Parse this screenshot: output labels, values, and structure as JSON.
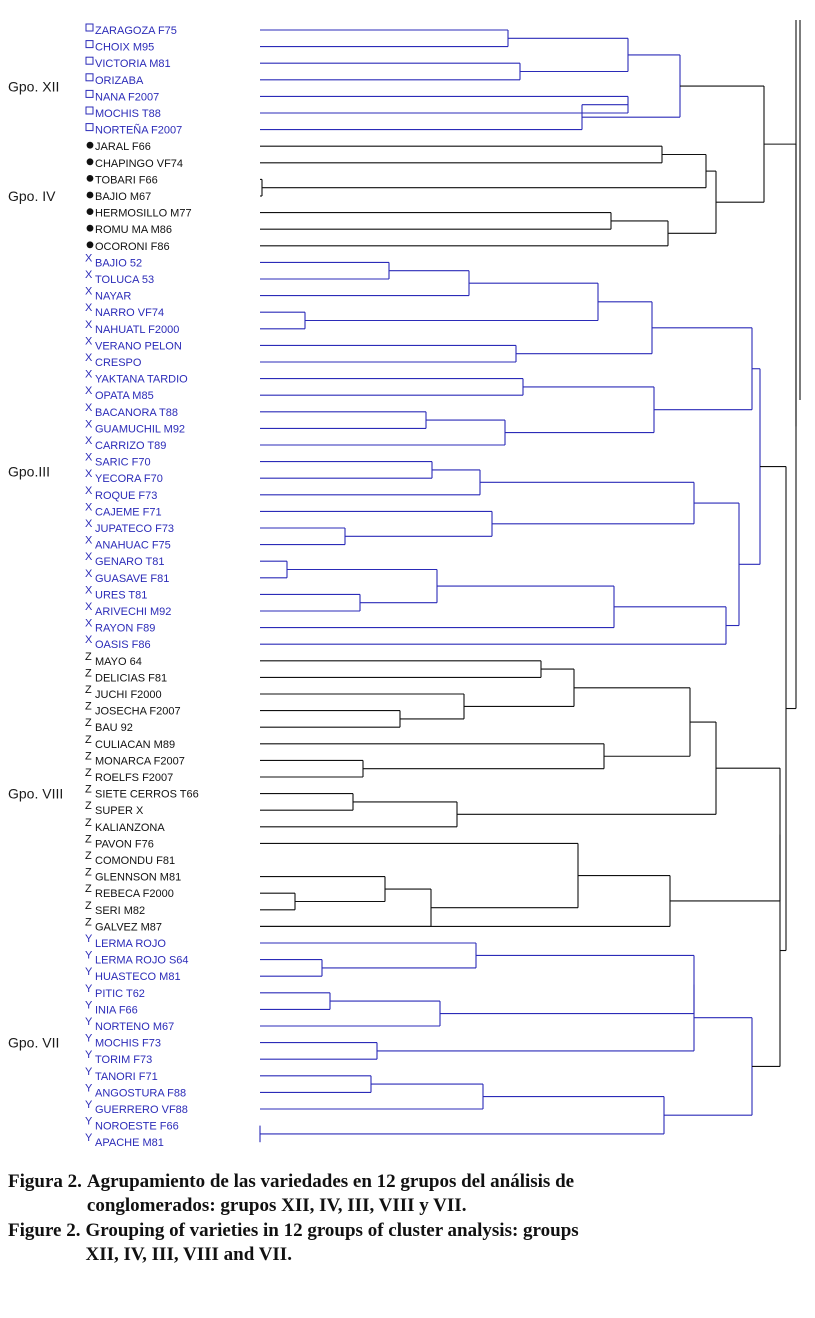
{
  "colors": {
    "blue": "#2b2bb8",
    "black": "#111111"
  },
  "groups": [
    {
      "label": "Gpo. XII",
      "marker": "□",
      "color": "blue",
      "leaves": [
        "ZARAGOZA F75",
        "CHOIX M95",
        "VICTORIA M81",
        "ORIZABA",
        "NANA F2007",
        "MOCHIS T88",
        "NORTEÑA F2007"
      ]
    },
    {
      "label": "Gpo. IV",
      "marker": "●",
      "color": "black",
      "leaves": [
        "JARAL F66",
        "CHAPINGO VF74",
        "TOBARI F66",
        "BAJIO M67",
        "HERMOSILLO M77",
        "ROMU MA M86",
        "OCORONI F86"
      ]
    },
    {
      "label": "Gpo.III",
      "marker": "X",
      "color": "blue",
      "leaves": [
        "BAJIO 52",
        "TOLUCA 53",
        "NAYAR",
        "NARRO VF74",
        "NAHUATL F2000",
        "VERANO PELON",
        "CRESPO",
        "YAKTANA TARDIO",
        "OPATA M85",
        "BACANORA T88",
        "GUAMUCHIL M92",
        "CARRIZO T89",
        "SARIC F70",
        "YECORA F70",
        "ROQUE F73",
        "CAJEME F71",
        "JUPATECO F73",
        "ANAHUAC F75",
        "GENARO T81",
        "GUASAVE F81",
        "URES T81",
        "ARIVECHI M92",
        "RAYON F89",
        "OASIS F86"
      ]
    },
    {
      "label": "Gpo. VIII",
      "marker": "Z",
      "color": "black",
      "leaves": [
        "MAYO 64",
        "DELICIAS F81",
        "JUCHI F2000",
        "JOSECHA F2007",
        "BAU 92",
        "CULIACAN M89",
        "MONARCA F2007",
        "ROELFS F2007",
        "SIETE CERROS T66",
        "SUPER X",
        "KALIANZONA",
        "PAVON F76",
        "COMONDU F81",
        "GLENNSON M81",
        "REBECA F2000",
        "SERI M82",
        "GALVEZ M87"
      ]
    },
    {
      "label": "Gpo. VII",
      "marker": "Y",
      "color": "blue",
      "leaves": [
        "LERMA ROJO",
        "LERMA ROJO S64",
        "HUASTECO M81",
        "PITIC T62",
        "INIA F66",
        "NORTENO M67",
        "MOCHIS F73",
        "TORIM F73",
        "TANORI F71",
        "ANGOSTURA F88",
        "GUERRERO VF88",
        "NOROESTE F66",
        "APACHE M81"
      ]
    }
  ],
  "caption": {
    "es_label": "Figura 2.",
    "es_text": "Agrupamiento de las variedades en 12 grupos del análisis de conglomerados: grupos XII, IV, III, VIII y VII.",
    "en_label": "Figure 2.",
    "en_text": "Grouping of varieties in 12 groups of cluster analysis: groups XII, IV, III, VIII and VII."
  }
}
